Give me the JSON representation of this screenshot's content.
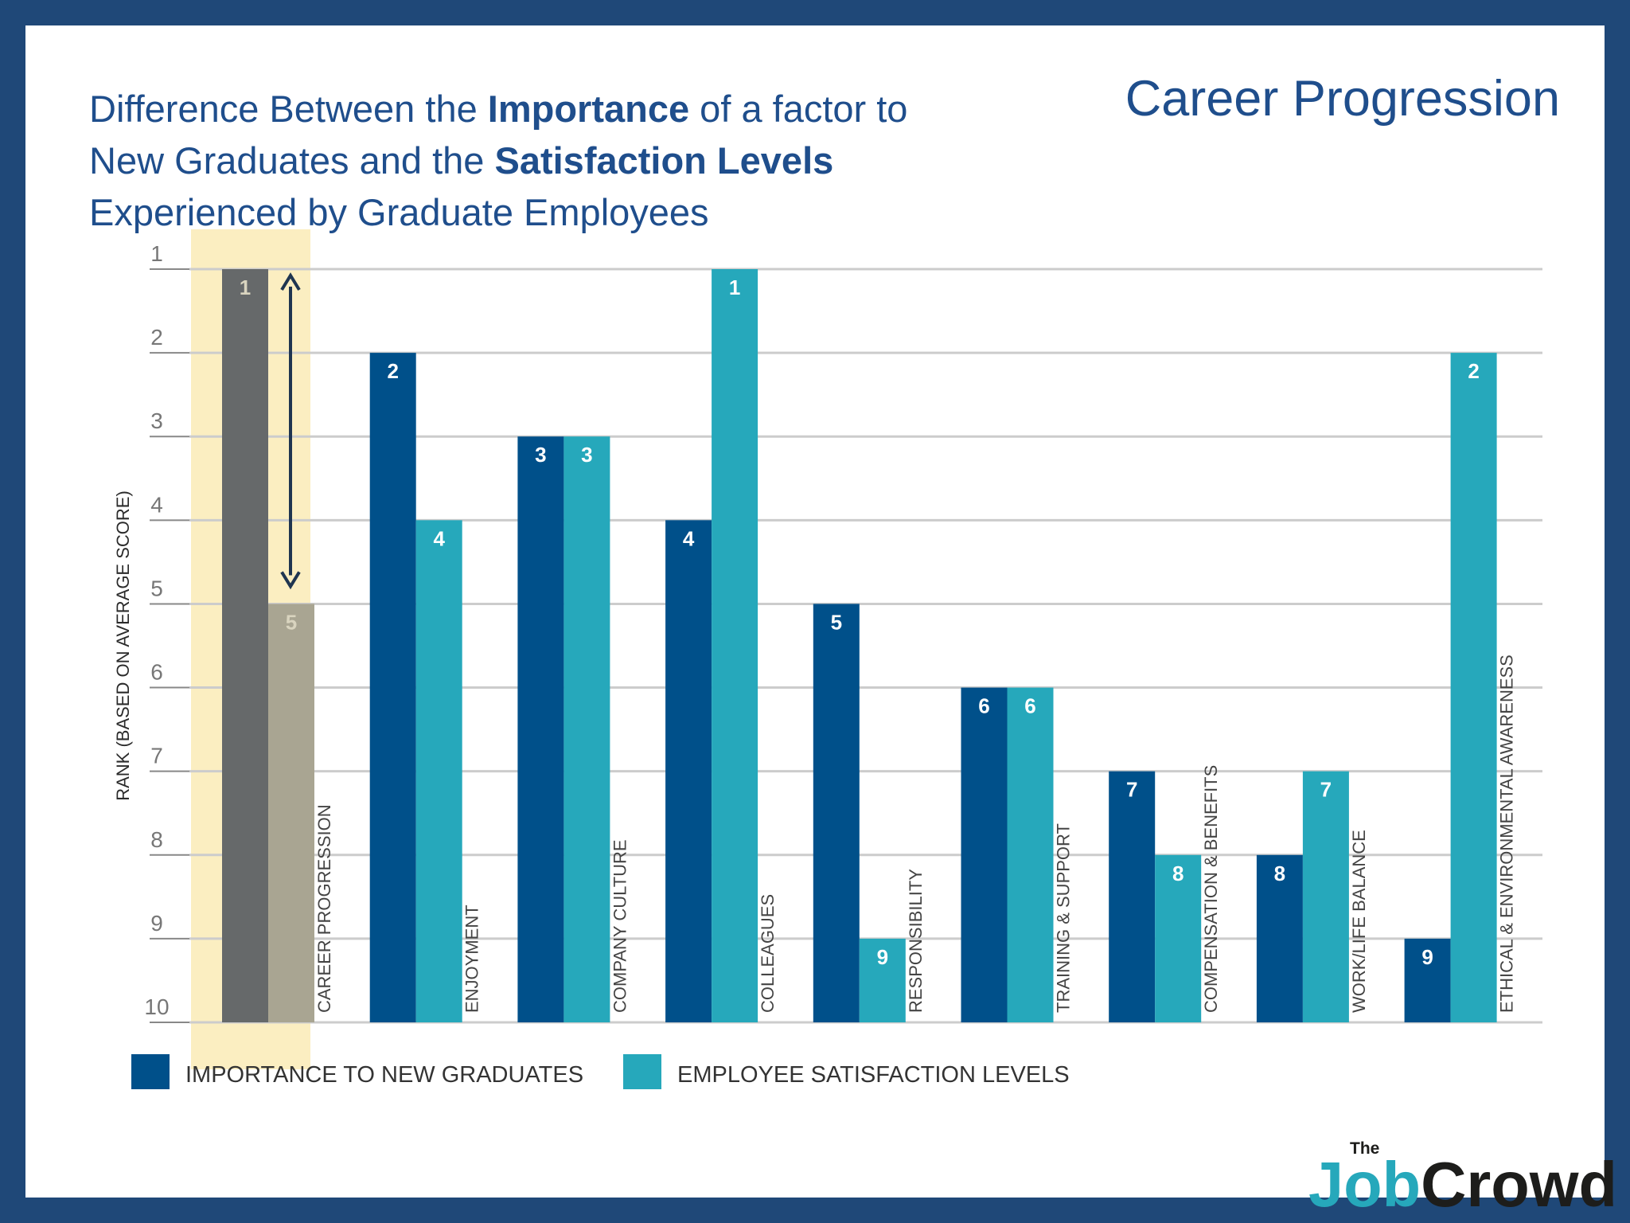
{
  "title": {
    "line1_a": "Difference Between the ",
    "line1_b": "Importance",
    "line1_c": " of a factor to",
    "line2_a": "New Graduates and the ",
    "line2_b": "Satisfaction Levels",
    "line3": "Experienced by Graduate Employees"
  },
  "section_title": "Career Progression",
  "logo": {
    "small": "The",
    "part1": "Job",
    "part2": "Crowd"
  },
  "colors": {
    "border": "#1f4878",
    "title": "#1f4e8c",
    "importance": "#00508a",
    "satisfaction": "#26a8bb",
    "highlight_importance": "#66696a",
    "highlight_satisfaction": "#a9a592",
    "highlight_band": "#fbeec1",
    "grid": "#cccccc",
    "logo_job": "#26a8bb",
    "logo_crowd": "#1d1d1b"
  },
  "chart_data": {
    "type": "bar",
    "ylabel": "RANK (BASED ON AVERAGE SCORE)",
    "yticks": [
      1,
      2,
      3,
      4,
      5,
      6,
      7,
      8,
      9,
      10
    ],
    "ylim": [
      10,
      1
    ],
    "y_reversed": true,
    "grid": true,
    "categories": [
      "CAREER PROGRESSION",
      "ENJOYMENT",
      "COMPANY CULTURE",
      "COLLEAGUES",
      "RESPONSIBILITY",
      "TRAINING & SUPPORT",
      "COMPENSATION & BENEFITS",
      "WORK/LIFE BALANCE",
      "ETHICAL & ENVIRONMENTAL AWARENESS"
    ],
    "series": [
      {
        "name": "IMPORTANCE TO NEW GRADUATES",
        "values": [
          1,
          2,
          3,
          4,
          5,
          6,
          7,
          8,
          9
        ]
      },
      {
        "name": "EMPLOYEE SATISFACTION LEVELS",
        "values": [
          5,
          4,
          3,
          1,
          9,
          6,
          8,
          7,
          2
        ]
      }
    ],
    "highlighted_category": "CAREER PROGRESSION",
    "legend_position": "bottom-left"
  }
}
